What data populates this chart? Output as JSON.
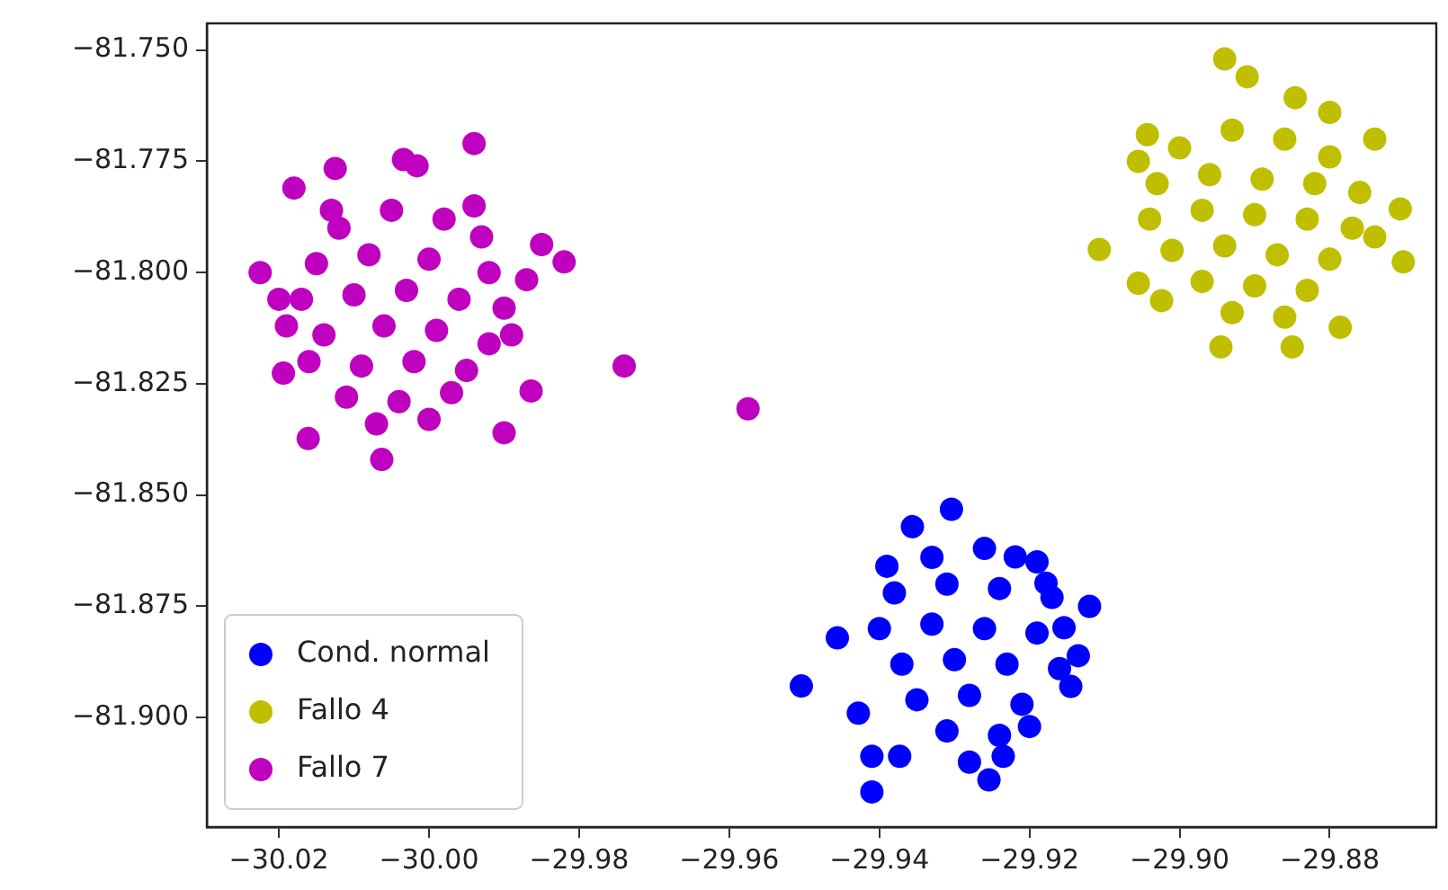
{
  "chart_data": {
    "type": "scatter",
    "grid": false,
    "legend": "bottom left",
    "marker": "circle",
    "xlim": [
      -30.0296,
      -29.8658
    ],
    "ylim": [
      -81.9246,
      -81.744
    ],
    "xticks": [
      {
        "value": -30.02,
        "label": "−30.02"
      },
      {
        "value": -30.0,
        "label": "−30.00"
      },
      {
        "value": -29.98,
        "label": "−29.98"
      },
      {
        "value": -29.96,
        "label": "−29.96"
      },
      {
        "value": -29.94,
        "label": "−29.94"
      },
      {
        "value": -29.92,
        "label": "−29.92"
      },
      {
        "value": -29.9,
        "label": "−29.90"
      },
      {
        "value": -29.88,
        "label": "−29.88"
      }
    ],
    "yticks": [
      {
        "value": -81.75,
        "label": "−81.750"
      },
      {
        "value": -81.775,
        "label": "−81.775"
      },
      {
        "value": -81.8,
        "label": "−81.800"
      },
      {
        "value": -81.825,
        "label": "−81.825"
      },
      {
        "value": -81.85,
        "label": "−81.850"
      },
      {
        "value": -81.875,
        "label": "−81.875"
      },
      {
        "value": -81.9,
        "label": "−81.900"
      }
    ],
    "series": [
      {
        "name": "Cond. normal",
        "color": "#0000ff",
        "x": [
          -29.9504,
          -29.941,
          -29.941,
          -29.9373,
          -29.9304,
          -29.9356,
          -29.9456,
          -29.9135,
          -29.9154,
          -29.9178,
          -29.9235,
          -29.9254,
          -29.9428,
          -29.9219,
          -29.9145,
          -29.933,
          -29.926,
          -29.919,
          -29.938,
          -29.931,
          -29.924,
          -29.917,
          -29.94,
          -29.933,
          -29.926,
          -29.919,
          -29.937,
          -29.93,
          -29.923,
          -29.916,
          -29.935,
          -29.928,
          -29.921,
          -29.931,
          -29.924,
          -29.928,
          -29.92,
          -29.939,
          -29.912
        ],
        "values": [
          -81.8929,
          -81.9167,
          -81.9087,
          -81.9087,
          -81.8532,
          -81.8571,
          -81.8821,
          -81.8861,
          -81.8798,
          -81.8698,
          -81.9087,
          -81.914,
          -81.899,
          -81.8639,
          -81.893,
          -81.864,
          -81.862,
          -81.865,
          -81.872,
          -81.87,
          -81.871,
          -81.873,
          -81.88,
          -81.879,
          -81.88,
          -81.881,
          -81.888,
          -81.887,
          -81.888,
          -81.889,
          -81.896,
          -81.895,
          -81.897,
          -81.903,
          -81.904,
          -81.91,
          -81.902,
          -81.866,
          -81.875
        ]
      },
      {
        "name": "Fallo 4",
        "color": "#bfbf00",
        "x": [
          -29.894,
          -29.891,
          -29.9107,
          -29.8702,
          -29.8706,
          -29.874,
          -29.8945,
          -29.885,
          -29.8786,
          -29.9055,
          -29.9024,
          -29.8846,
          -29.9043,
          -29.9055,
          -29.88,
          -29.9,
          -29.893,
          -29.886,
          -29.88,
          -29.903,
          -29.896,
          -29.889,
          -29.882,
          -29.876,
          -29.904,
          -29.897,
          -29.89,
          -29.883,
          -29.877,
          -29.901,
          -29.894,
          -29.887,
          -29.88,
          -29.897,
          -29.89,
          -29.883,
          -29.893,
          -29.886,
          -29.874
        ],
        "values": [
          -81.752,
          -81.756,
          -81.7948,
          -81.7976,
          -81.7857,
          -81.77,
          -81.8167,
          -81.8167,
          -81.8123,
          -81.8024,
          -81.8063,
          -81.7607,
          -81.769,
          -81.775,
          -81.764,
          -81.772,
          -81.768,
          -81.77,
          -81.774,
          -81.78,
          -81.778,
          -81.779,
          -81.78,
          -81.782,
          -81.788,
          -81.786,
          -81.787,
          -81.788,
          -81.79,
          -81.795,
          -81.794,
          -81.796,
          -81.797,
          -81.802,
          -81.803,
          -81.804,
          -81.809,
          -81.81,
          -81.792
        ]
      },
      {
        "name": "Fallo 7",
        "color": "#bf00bf",
        "x": [
          -30.0225,
          -30.0125,
          -30.0034,
          -30.0016,
          -29.994,
          -29.982,
          -29.985,
          -29.987,
          -29.9864,
          -30.0161,
          -30.0063,
          -30.0194,
          -29.99,
          -29.974,
          -29.9575,
          -30.018,
          -30.02,
          -30.012,
          -30.005,
          -29.998,
          -29.993,
          -30.015,
          -30.008,
          -30.0,
          -29.992,
          -30.017,
          -30.01,
          -30.003,
          -29.996,
          -29.99,
          -30.014,
          -30.006,
          -29.999,
          -29.992,
          -30.016,
          -30.009,
          -30.002,
          -29.995,
          -30.011,
          -30.004,
          -29.997,
          -30.007,
          -30.0,
          -30.013,
          -29.994,
          -30.019,
          -29.989
        ],
        "values": [
          -81.8,
          -81.7766,
          -81.7746,
          -81.776,
          -81.771,
          -81.7976,
          -81.7937,
          -81.8016,
          -81.8266,
          -81.8373,
          -81.842,
          -81.8226,
          -81.836,
          -81.821,
          -81.8306,
          -81.781,
          -81.806,
          -81.79,
          -81.786,
          -81.788,
          -81.792,
          -81.798,
          -81.796,
          -81.797,
          -81.8,
          -81.806,
          -81.805,
          -81.804,
          -81.806,
          -81.808,
          -81.814,
          -81.812,
          -81.813,
          -81.816,
          -81.82,
          -81.821,
          -81.82,
          -81.822,
          -81.828,
          -81.829,
          -81.827,
          -81.834,
          -81.833,
          -81.786,
          -81.785,
          -81.812,
          -81.814
        ]
      }
    ]
  }
}
